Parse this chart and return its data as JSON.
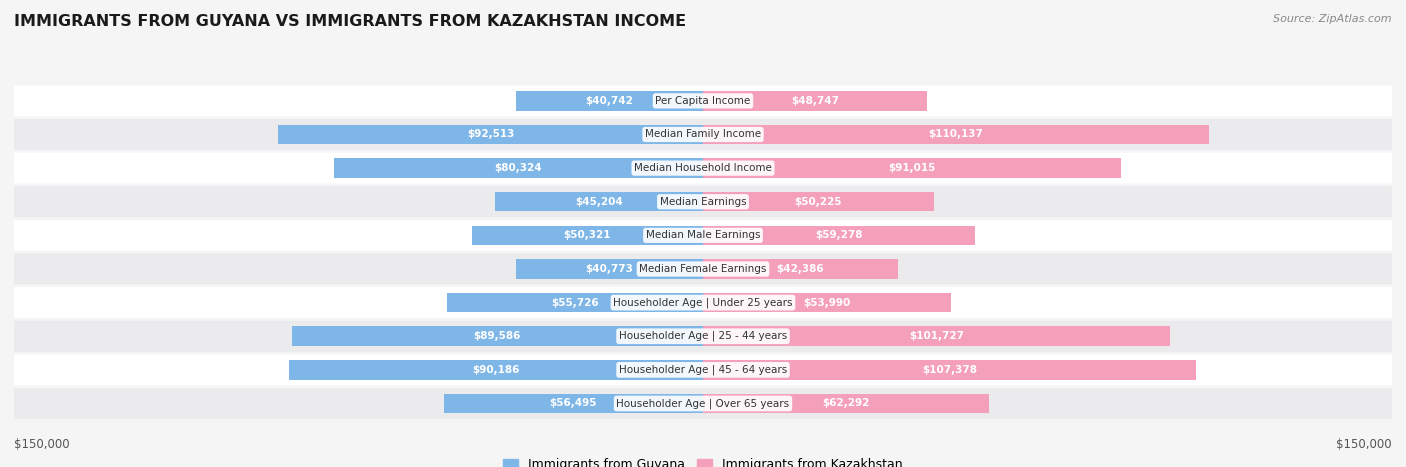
{
  "title": "IMMIGRANTS FROM GUYANA VS IMMIGRANTS FROM KAZAKHSTAN INCOME",
  "source": "Source: ZipAtlas.com",
  "categories": [
    "Per Capita Income",
    "Median Family Income",
    "Median Household Income",
    "Median Earnings",
    "Median Male Earnings",
    "Median Female Earnings",
    "Householder Age | Under 25 years",
    "Householder Age | 25 - 44 years",
    "Householder Age | 45 - 64 years",
    "Householder Age | Over 65 years"
  ],
  "guyana_values": [
    40742,
    92513,
    80324,
    45204,
    50321,
    40773,
    55726,
    89586,
    90186,
    56495
  ],
  "kazakhstan_values": [
    48747,
    110137,
    91015,
    50225,
    59278,
    42386,
    53990,
    101727,
    107378,
    62292
  ],
  "guyana_labels": [
    "$40,742",
    "$92,513",
    "$80,324",
    "$45,204",
    "$50,321",
    "$40,773",
    "$55,726",
    "$89,586",
    "$90,186",
    "$56,495"
  ],
  "kazakhstan_labels": [
    "$48,747",
    "$110,137",
    "$91,015",
    "$50,225",
    "$59,278",
    "$42,386",
    "$53,990",
    "$101,727",
    "$107,378",
    "$62,292"
  ],
  "guyana_color": "#7EB6E8",
  "kazakhstan_color": "#F4A0BB",
  "axis_limit": 150000,
  "legend_guyana": "Immigrants from Guyana",
  "legend_kazakhstan": "Immigrants from Kazakhstan",
  "bg_color": "#f5f5f5",
  "ylabel_left": "$150,000",
  "ylabel_right": "$150,000",
  "inside_label_threshold": 25000
}
